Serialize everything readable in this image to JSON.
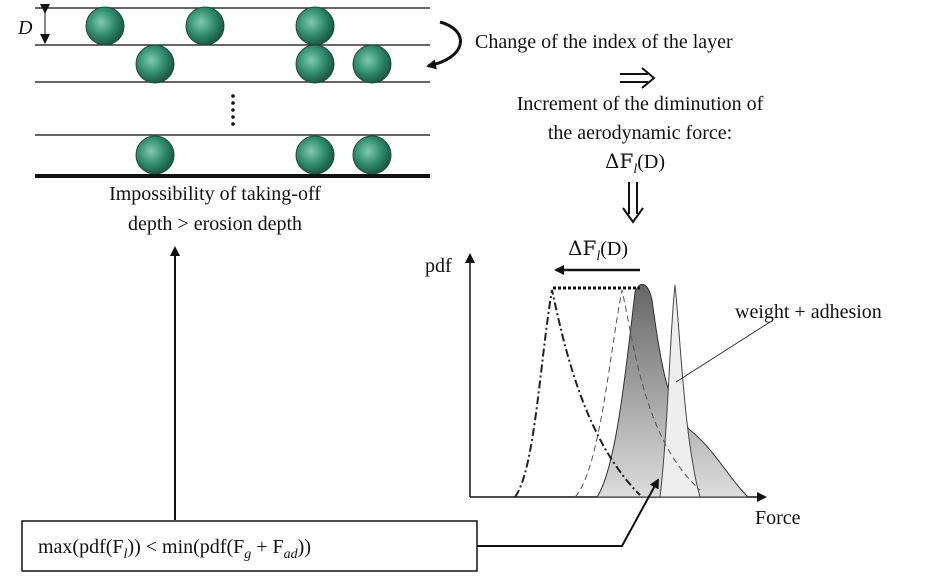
{
  "layer_label": "D",
  "change_text": "Change of the index of the layer",
  "increment_lines": [
    "Increment of the diminution of",
    "the aerodynamic force:"
  ],
  "delta_formula": [
    "ΔF",
    "l",
    "(D)"
  ],
  "impossibility_lines": [
    "Impossibility of taking-off",
    "depth > erosion depth"
  ],
  "plot": {
    "y_label": "pdf",
    "x_label": "Force",
    "shift_label": [
      "ΔF",
      "l",
      "(D)"
    ],
    "curve_label": "weight + adhesion"
  },
  "condition": [
    "max(pdf(F",
    "l",
    ")) < min(pdf(F",
    "g",
    " + F",
    "ad",
    "))"
  ]
}
